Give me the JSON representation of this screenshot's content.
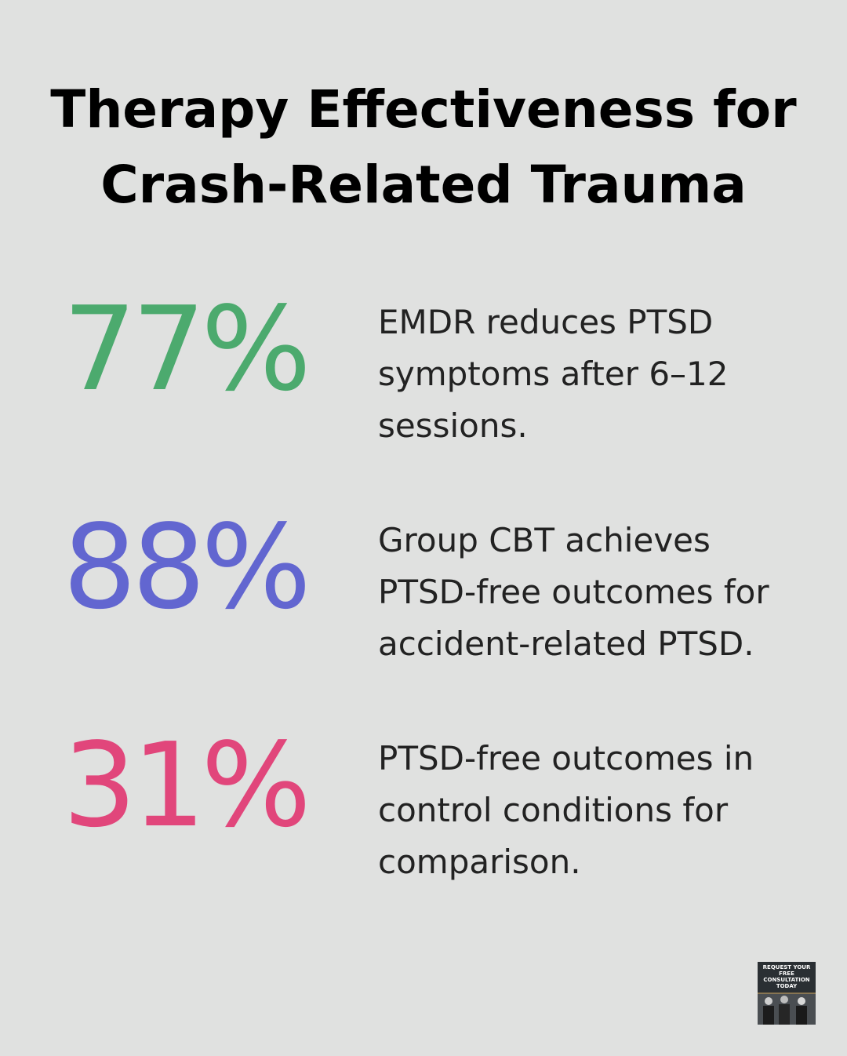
{
  "header": {
    "title": [
      "Therapy Effectiveness for",
      "Crash-Related Trauma"
    ]
  },
  "stats": [
    {
      "value": "77%",
      "color": "#4caa6e",
      "text": "EMDR reduces PTSD symptoms after 6–12 sessions."
    },
    {
      "value": "88%",
      "color": "#6266d0",
      "text": "Group CBT achieves PTSD-free outcomes for accident-related PTSD."
    },
    {
      "value": "31%",
      "color": "#e1467b",
      "text": "PTSD-free outcomes in control conditions for comparison."
    }
  ],
  "badge": {
    "text": "REQUEST YOUR FREE CONSULTATION TODAY"
  }
}
